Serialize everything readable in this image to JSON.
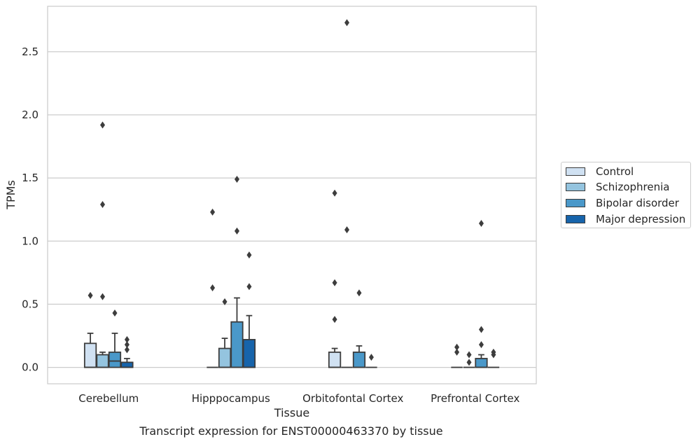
{
  "chart_data": {
    "type": "box",
    "title": "",
    "xlabel": "Tissue",
    "ylabel": "TPMs",
    "caption": "Transcript expression for ENST00000463370 by tissue",
    "ylim": [
      -0.13,
      2.86
    ],
    "yticks": [
      0.0,
      0.5,
      1.0,
      1.5,
      2.0,
      2.5
    ],
    "ytick_labels": [
      "0.0",
      "0.5",
      "1.0",
      "1.5",
      "2.0",
      "2.5"
    ],
    "grid": "horizontal",
    "legend_position": "right",
    "categories": [
      "Cerebellum",
      "Hipppocampus",
      "Orbitofontal Cortex",
      "Prefrontal Cortex"
    ],
    "series": [
      {
        "name": "Control",
        "color": "#d0e1f2",
        "boxes": [
          {
            "q1": 0.0,
            "median": 0.0,
            "q3": 0.19,
            "whisker_low": 0.0,
            "whisker_high": 0.27,
            "outliers": [
              0.57
            ]
          },
          {
            "q1": 0.0,
            "median": 0.0,
            "q3": 0.0,
            "whisker_low": 0.0,
            "whisker_high": 0.0,
            "outliers": [
              0.63,
              1.23
            ]
          },
          {
            "q1": 0.0,
            "median": 0.0,
            "q3": 0.12,
            "whisker_low": 0.0,
            "whisker_high": 0.15,
            "outliers": [
              0.38,
              0.67,
              1.38
            ]
          },
          {
            "q1": 0.0,
            "median": 0.0,
            "q3": 0.0,
            "whisker_low": 0.0,
            "whisker_high": 0.0,
            "outliers": [
              0.12,
              0.16
            ]
          }
        ]
      },
      {
        "name": "Schizophrenia",
        "color": "#94c4df",
        "boxes": [
          {
            "q1": 0.0,
            "median": 0.0,
            "q3": 0.1,
            "whisker_low": 0.0,
            "whisker_high": 0.12,
            "outliers": [
              0.56,
              1.29,
              1.92
            ]
          },
          {
            "q1": 0.0,
            "median": 0.0,
            "q3": 0.15,
            "whisker_low": 0.0,
            "whisker_high": 0.23,
            "outliers": [
              0.52
            ]
          },
          {
            "q1": 0.0,
            "median": 0.0,
            "q3": 0.0,
            "whisker_low": 0.0,
            "whisker_high": 0.0,
            "outliers": [
              1.09,
              2.73
            ]
          },
          {
            "q1": 0.0,
            "median": 0.0,
            "q3": 0.0,
            "whisker_low": 0.0,
            "whisker_high": 0.0,
            "outliers": [
              0.04,
              0.1
            ]
          }
        ]
      },
      {
        "name": "Bipolar disorder",
        "color": "#4a98c9",
        "boxes": [
          {
            "q1": 0.0,
            "median": 0.05,
            "q3": 0.12,
            "whisker_low": 0.0,
            "whisker_high": 0.27,
            "outliers": [
              0.43
            ]
          },
          {
            "q1": 0.0,
            "median": 0.0,
            "q3": 0.36,
            "whisker_low": 0.0,
            "whisker_high": 0.55,
            "outliers": [
              1.08,
              1.49
            ]
          },
          {
            "q1": 0.0,
            "median": 0.0,
            "q3": 0.12,
            "whisker_low": 0.0,
            "whisker_high": 0.17,
            "outliers": [
              0.59
            ]
          },
          {
            "q1": 0.0,
            "median": 0.0,
            "q3": 0.07,
            "whisker_low": 0.0,
            "whisker_high": 0.1,
            "outliers": [
              0.18,
              0.3,
              1.14
            ]
          }
        ]
      },
      {
        "name": "Major depression",
        "color": "#1764ab",
        "boxes": [
          {
            "q1": 0.0,
            "median": 0.0,
            "q3": 0.04,
            "whisker_low": 0.0,
            "whisker_high": 0.07,
            "outliers": [
              0.14,
              0.18,
              0.22
            ]
          },
          {
            "q1": 0.0,
            "median": 0.0,
            "q3": 0.22,
            "whisker_low": 0.0,
            "whisker_high": 0.41,
            "outliers": [
              0.64,
              0.89
            ]
          },
          {
            "q1": 0.0,
            "median": 0.0,
            "q3": 0.0,
            "whisker_low": 0.0,
            "whisker_high": 0.0,
            "outliers": [
              0.08
            ]
          },
          {
            "q1": 0.0,
            "median": 0.0,
            "q3": 0.0,
            "whisker_low": 0.0,
            "whisker_high": 0.0,
            "outliers": [
              0.1,
              0.12
            ]
          }
        ]
      }
    ]
  }
}
